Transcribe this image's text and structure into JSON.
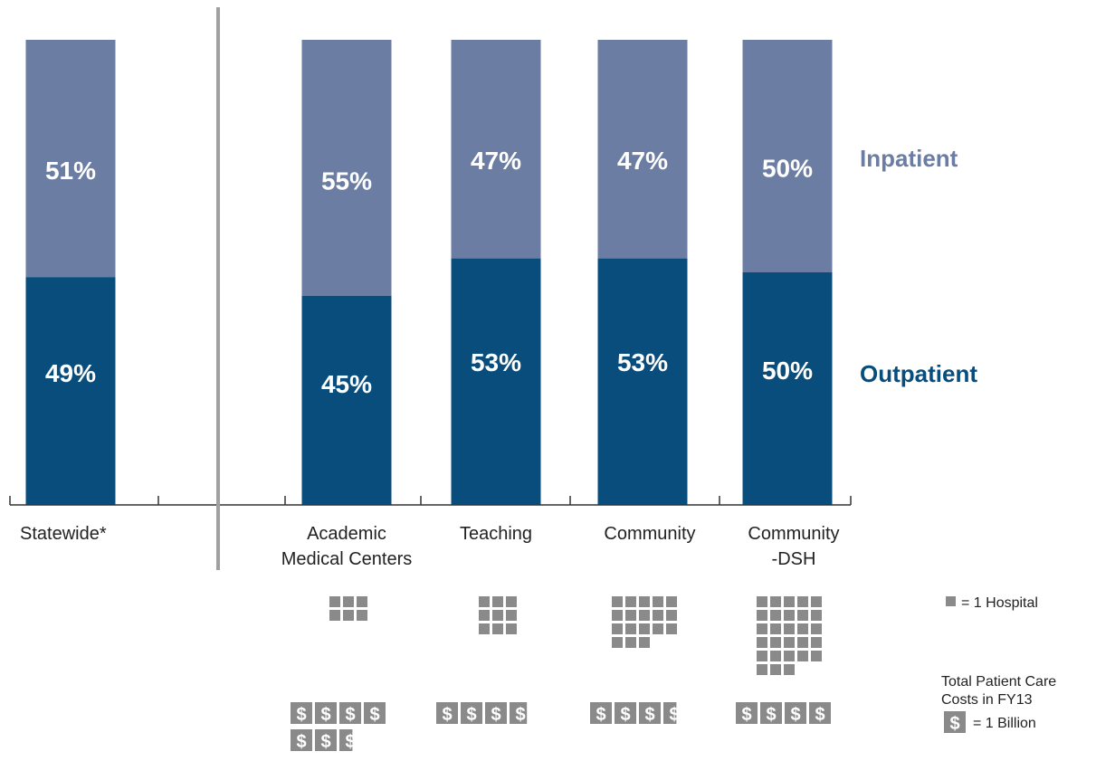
{
  "chart_data": {
    "type": "bar",
    "stacked": true,
    "ylim": [
      0,
      100
    ],
    "categories": [
      "Statewide*",
      "Academic\nMedical Centers",
      "Teaching",
      "Community",
      "Community\n-DSH"
    ],
    "series": [
      {
        "name": "Outpatient",
        "color": "#084d7c",
        "values": [
          49,
          45,
          53,
          53,
          50
        ]
      },
      {
        "name": "Inpatient",
        "color": "#6b7da2",
        "values": [
          51,
          55,
          47,
          47,
          50
        ]
      }
    ],
    "value_labels": {
      "Outpatient": [
        "49%",
        "45%",
        "53%",
        "53%",
        "50%"
      ],
      "Inpatient": [
        "51%",
        "55%",
        "47%",
        "47%",
        "50%"
      ]
    },
    "hospital_counts": [
      null,
      6,
      9,
      18,
      28
    ],
    "cost_billions": [
      null,
      6.6,
      3.8,
      3.6,
      4.0
    ],
    "legend_position": "right"
  },
  "key": {
    "hospital": "= 1 Hospital",
    "cost_title_1": "Total Patient Care",
    "cost_title_2": "Costs in FY13",
    "cost_unit": "= 1 Billion",
    "dollar_symbol": "$"
  },
  "colors": {
    "hospital_square": "#8a8a8a",
    "dollar_box": "#8a8a8a",
    "divider": "#a0a0a0",
    "axis": "#333333"
  }
}
